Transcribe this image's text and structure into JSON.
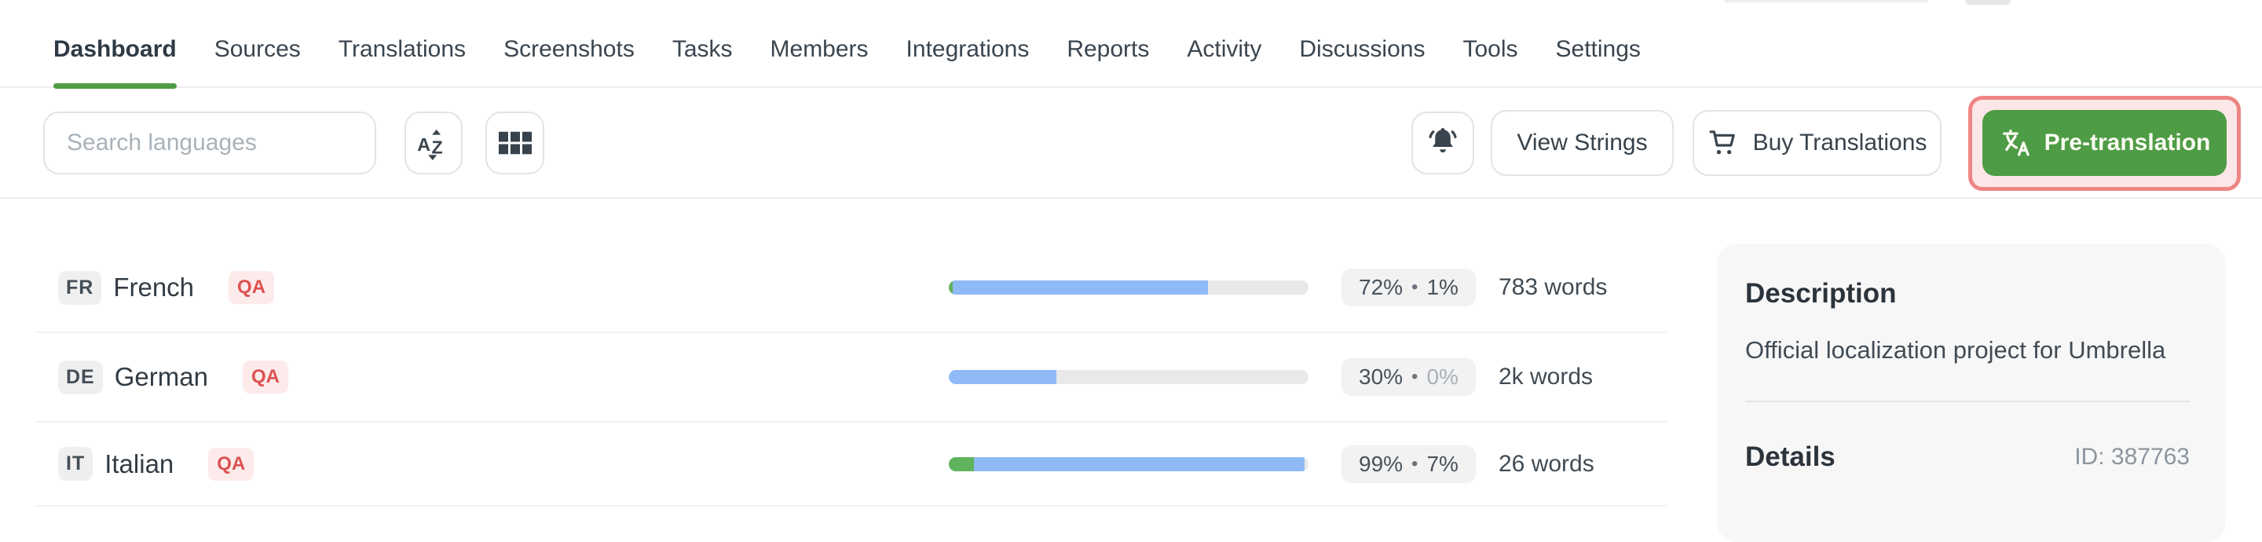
{
  "nav": {
    "items": [
      {
        "label": "Dashboard",
        "active": true
      },
      {
        "label": "Sources",
        "active": false
      },
      {
        "label": "Translations",
        "active": false
      },
      {
        "label": "Screenshots",
        "active": false
      },
      {
        "label": "Tasks",
        "active": false
      },
      {
        "label": "Members",
        "active": false
      },
      {
        "label": "Integrations",
        "active": false
      },
      {
        "label": "Reports",
        "active": false
      },
      {
        "label": "Activity",
        "active": false
      },
      {
        "label": "Discussions",
        "active": false
      },
      {
        "label": "Tools",
        "active": false
      },
      {
        "label": "Settings",
        "active": false
      }
    ]
  },
  "toolbar": {
    "search_placeholder": "Search languages",
    "sort_icon": "sort-alphabetical-icon",
    "grid_icon": "grid-view-icon",
    "bell_icon": "notification-bell-icon",
    "view_strings_label": "View Strings",
    "cart_icon": "shopping-cart-icon",
    "buy_translations_label": "Buy Translations",
    "translate_icon": "translate-icon",
    "pretranslation_label": "Pre-translation",
    "pretranslation_highlight": "red annotation box around Pre-translation button"
  },
  "languages": [
    {
      "code": "FR",
      "name": "French",
      "qa": "QA",
      "translated_pct": 72,
      "approved_pct": 1,
      "badge_translated": "72%",
      "badge_dot": "•",
      "badge_approved": "1%",
      "approved_muted": false,
      "words": "783 words"
    },
    {
      "code": "DE",
      "name": "German",
      "qa": "QA",
      "translated_pct": 30,
      "approved_pct": 0,
      "badge_translated": "30%",
      "badge_dot": "•",
      "badge_approved": "0%",
      "approved_muted": true,
      "words": "2k words"
    },
    {
      "code": "IT",
      "name": "Italian",
      "qa": "QA",
      "translated_pct": 99,
      "approved_pct": 7,
      "badge_translated": "99%",
      "badge_dot": "•",
      "badge_approved": "7%",
      "approved_muted": false,
      "words": "26 words"
    }
  ],
  "panel": {
    "description_title": "Description",
    "description_text": "Official localization project for Umbrella",
    "details_title": "Details",
    "details_id": "ID: 387763"
  },
  "colors": {
    "accent_green": "#4e9c45",
    "progress_blue": "#8fbaf7",
    "progress_green": "#5fb35c",
    "qa_red": "#dd5151",
    "qa_bg": "#fcebea",
    "highlight_border": "#ee8585",
    "highlight_fill": "#fbe7e7",
    "panel_bg": "#f7f7f8"
  }
}
